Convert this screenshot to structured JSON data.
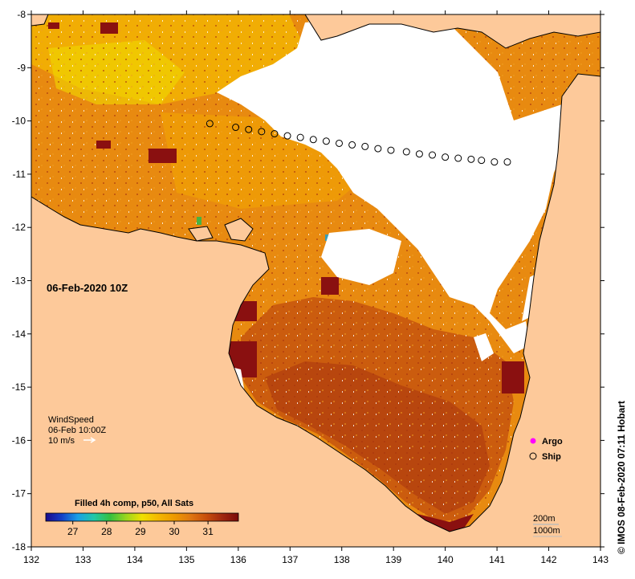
{
  "map": {
    "date_label": "06-Feb-2020 10Z",
    "credit": "© IMOS 08-Feb-2020 07:11 Hobart",
    "colors": {
      "land": "#fdc99a",
      "cloud": "#ffffff",
      "coast": "#000000",
      "sst_warm": "#e88a10",
      "sst_hot": "#c24e0e",
      "sst_max": "#8a1010",
      "sst_mid": "#f4b800",
      "sst_cool": "#2db84a",
      "argo": "#ff00ff"
    }
  },
  "axes": {
    "lon_min": 132,
    "lon_max": 143,
    "lat_min": -18,
    "lat_max": -8,
    "x_ticks": [
      132,
      133,
      134,
      135,
      136,
      137,
      138,
      139,
      140,
      141,
      142,
      143
    ],
    "y_ticks": [
      -8,
      -9,
      -10,
      -11,
      -12,
      -13,
      -14,
      -15,
      -16,
      -17,
      -18
    ]
  },
  "ship_track": {
    "lon": [
      135.45,
      135.95,
      136.2,
      136.45,
      136.7,
      136.95,
      137.2,
      137.45,
      137.7,
      137.95,
      138.2,
      138.45,
      138.7,
      138.95,
      139.25,
      139.5,
      139.75,
      140.0,
      140.25,
      140.5,
      140.7,
      140.95,
      141.2
    ],
    "lat": [
      -10.05,
      -10.12,
      -10.16,
      -10.2,
      -10.24,
      -10.28,
      -10.31,
      -10.35,
      -10.38,
      -10.42,
      -10.45,
      -10.48,
      -10.52,
      -10.55,
      -10.58,
      -10.62,
      -10.64,
      -10.68,
      -10.7,
      -10.72,
      -10.74,
      -10.77,
      -10.77
    ]
  },
  "wind": {
    "title": "WindSpeed",
    "time": "06-Feb 10:00Z",
    "scale": "10 m/s"
  },
  "colorbar": {
    "title": "Filled 4h comp, p50, All Sats",
    "min": 26.2,
    "max": 31.9,
    "ticks": [
      "27",
      "28",
      "29",
      "30",
      "31"
    ],
    "tick_values": [
      27,
      28,
      29,
      30,
      31
    ],
    "stops": [
      "#1a0a8c",
      "#1440c8",
      "#1aa0e6",
      "#20c8a8",
      "#34c040",
      "#9ad61e",
      "#f0e000",
      "#f4b800",
      "#ee9a00",
      "#e07810",
      "#c84e0c",
      "#a02810",
      "#7a0a0a"
    ]
  },
  "legend": {
    "argo": "Argo",
    "ship": "Ship"
  },
  "isobath": {
    "a": "200m",
    "b": "1000m"
  }
}
